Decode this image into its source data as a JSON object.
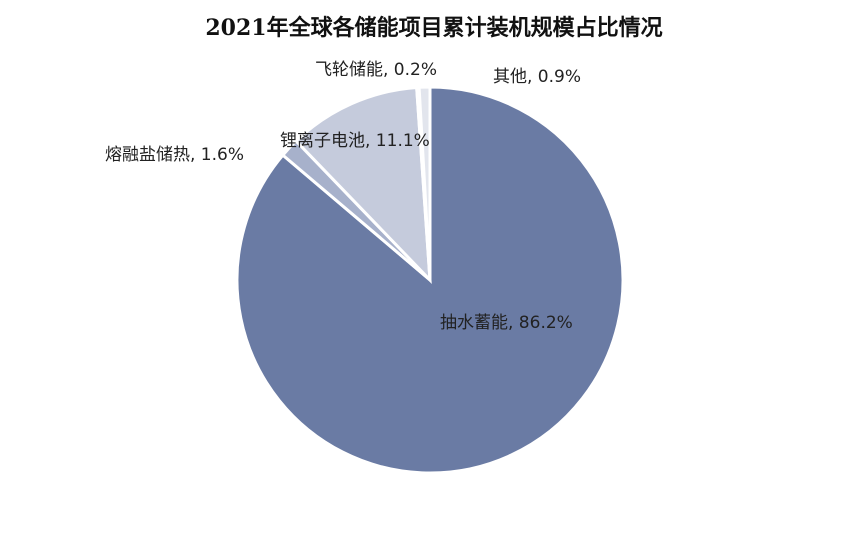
{
  "chart_data": {
    "type": "pie",
    "title": "2021年全球各储能项目累计装机规模占比情况",
    "slices": [
      {
        "label": "抽水蓄能",
        "value": 86.2,
        "text": "抽水蓄能, 86.2%",
        "color": "#6a7ba4"
      },
      {
        "label": "熔融盐储热",
        "value": 1.6,
        "text": "熔融盐储热, 1.6%",
        "color": "#a7b1cb"
      },
      {
        "label": "锂离子电池",
        "value": 11.1,
        "text": "锂离子电池, 11.1%",
        "color": "#c5cbdc"
      },
      {
        "label": "飞轮储能",
        "value": 0.2,
        "text": "飞轮储能, 0.2%",
        "color": "#f2f3f6"
      },
      {
        "label": "其他",
        "value": 0.9,
        "text": "其他, 0.9%",
        "color": "#e2e5ed"
      }
    ],
    "start": "12 o'clock",
    "direction": "clockwise",
    "legend": "none"
  }
}
